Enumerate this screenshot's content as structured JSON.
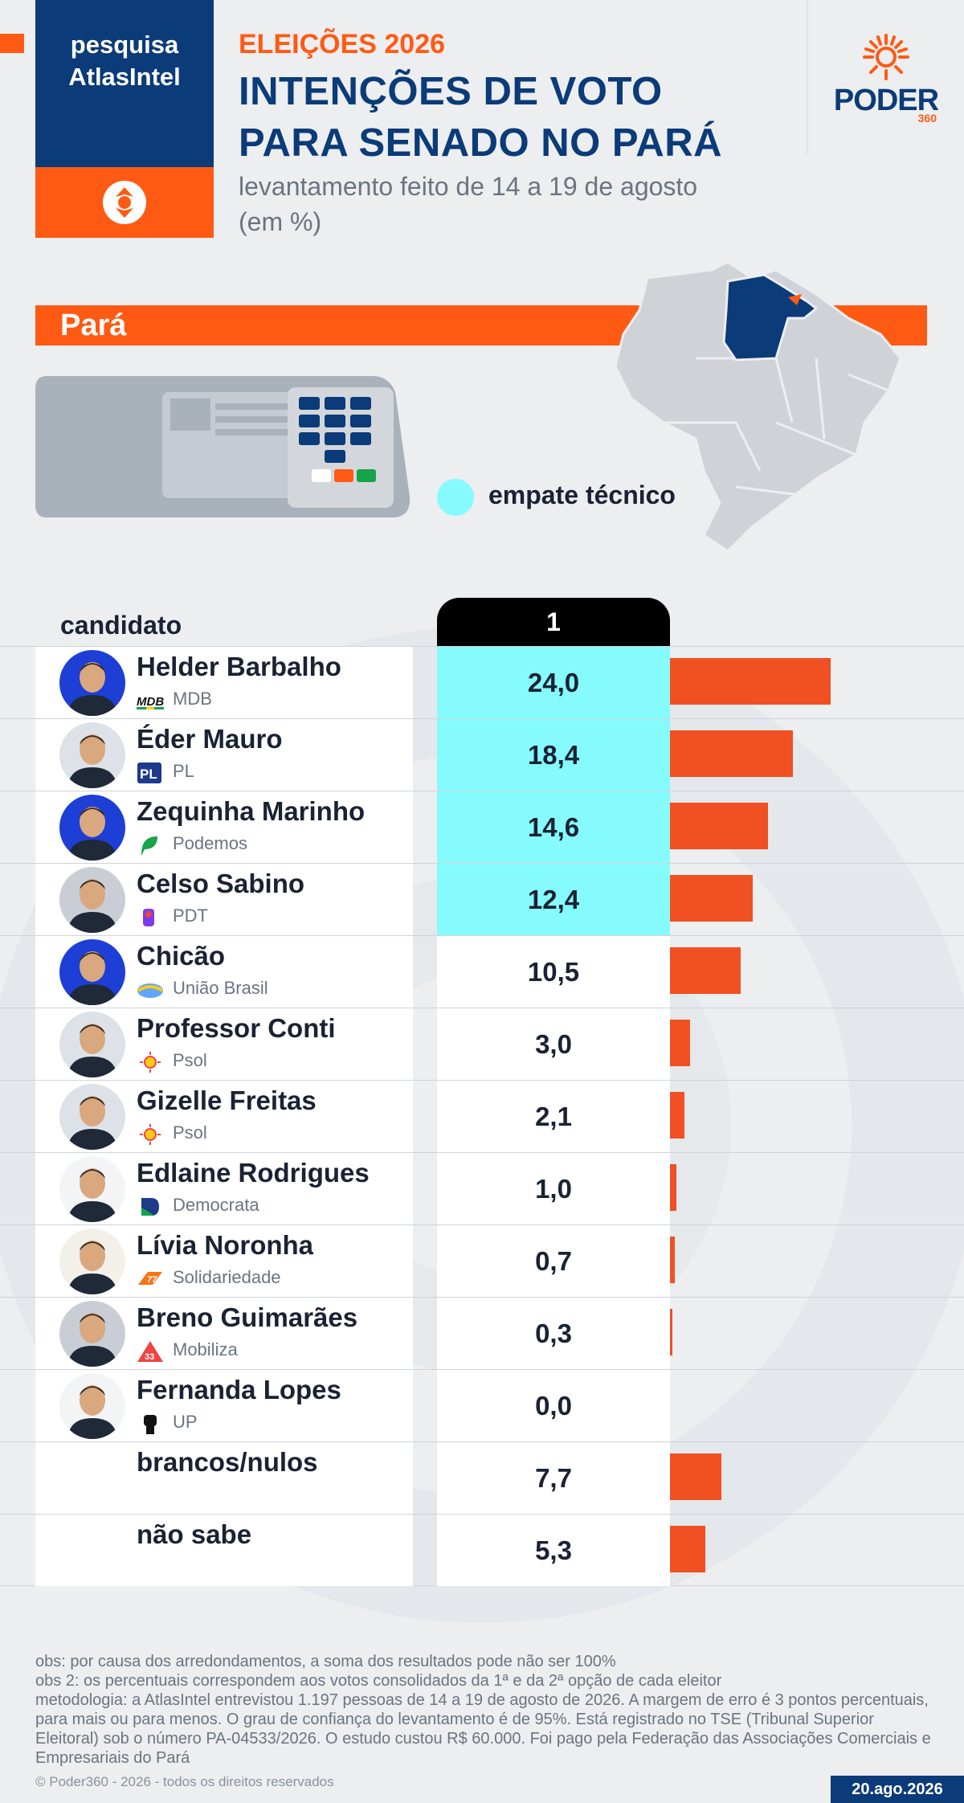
{
  "brand": {
    "survey_line1": "pesquisa",
    "survey_line2": "AtlasIntel",
    "logo_word": "PODER",
    "logo_number": "360"
  },
  "header": {
    "kicker": "ELEIÇÕES 2026",
    "title_line1": "INTENÇÕES DE VOTO",
    "title_line2": "PARA SENADO NO PARÁ",
    "subtitle_line1": "levantamento feito de 14 a 19 de agosto",
    "subtitle_line2": "(em %)"
  },
  "region": {
    "label": "Pará"
  },
  "legend": {
    "tie_label": "empate técnico",
    "tie_color": "#86fbfd"
  },
  "table": {
    "candidate_header": "candidato",
    "column_header": "1"
  },
  "colors": {
    "brand_blue": "#0b3b78",
    "brand_orange": "#ff5a13",
    "bar": "#f05022",
    "tie": "#86fbfd"
  },
  "chart_data": {
    "type": "bar",
    "orientation": "horizontal",
    "title": "INTENÇÕES DE VOTO PARA SENADO NO PARÁ",
    "subtitle": "levantamento feito de 14 a 19 de agosto (em %)",
    "xlim": [
      0,
      40
    ],
    "categories": [
      "Helder Barbalho",
      "Éder Mauro",
      "Zequinha Marinho",
      "Celso Sabino",
      "Chicão",
      "Professor Conti",
      "Gizelle Freitas",
      "Edlaine Rodrigues",
      "Lívia Noronha",
      "Breno Guimarães",
      "Fernanda Lopes",
      "brancos/nulos",
      "não sabe"
    ],
    "series": [
      {
        "name": "1",
        "values": [
          24.0,
          18.4,
          14.6,
          12.4,
          10.5,
          3.0,
          2.1,
          1.0,
          0.7,
          0.3,
          0.0,
          7.7,
          5.3
        ],
        "labels": [
          "24,0",
          "18,4",
          "14,6",
          "12,4",
          "10,5",
          "3,0",
          "2,1",
          "1,0",
          "0,7",
          "0,3",
          "0,0",
          "7,7",
          "5,3"
        ]
      }
    ],
    "rows": [
      {
        "name": "Helder Barbalho",
        "party": "MDB",
        "party_icon": "mdb-logo-icon",
        "avatar_color": "#1d3fd6",
        "tie": true
      },
      {
        "name": "Éder Mauro",
        "party": "PL",
        "party_icon": "pl-logo-icon",
        "avatar_color": "#dde2e8",
        "tie": true
      },
      {
        "name": "Zequinha Marinho",
        "party": "Podemos",
        "party_icon": "podemos-logo-icon",
        "avatar_color": "#1d3fd6",
        "tie": true
      },
      {
        "name": "Celso Sabino",
        "party": "PDT",
        "party_icon": "pdt-logo-icon",
        "avatar_color": "#c9ced6",
        "tie": true
      },
      {
        "name": "Chicão",
        "party": "União Brasil",
        "party_icon": "uniao-brasil-logo-icon",
        "avatar_color": "#1d3fd6",
        "tie": false
      },
      {
        "name": "Professor Conti",
        "party": "Psol",
        "party_icon": "psol-sun-icon",
        "avatar_color": "#dde2e8",
        "tie": false
      },
      {
        "name": "Gizelle Freitas",
        "party": "Psol",
        "party_icon": "psol-sun-icon",
        "avatar_color": "#dde2e8",
        "tie": false
      },
      {
        "name": "Edlaine Rodrigues",
        "party": "Democrata",
        "party_icon": "democrata-logo-icon",
        "avatar_color": "#f3f4f6",
        "tie": false
      },
      {
        "name": "Lívia Noronha",
        "party": "Solidariedade",
        "party_icon": "solidariedade-logo-icon",
        "avatar_color": "#f3f0ea",
        "tie": false
      },
      {
        "name": "Breno Guimarães",
        "party": "Mobiliza",
        "party_icon": "mobiliza-logo-icon",
        "avatar_color": "#c9ced6",
        "tie": false
      },
      {
        "name": "Fernanda Lopes",
        "party": "UP",
        "party_icon": "up-fist-icon",
        "avatar_color": "#f3f4f6",
        "tie": false
      },
      {
        "name": "brancos/nulos",
        "party": "",
        "party_icon": "",
        "avatar_color": "",
        "tie": false
      },
      {
        "name": "não sabe",
        "party": "",
        "party_icon": "",
        "avatar_color": "",
        "tie": false
      }
    ]
  },
  "footer": {
    "obs1": "obs: por causa dos arredondamentos, a soma dos resultados pode não ser 100%",
    "obs2": "obs 2: os percentuais correspondem aos votos consolidados da 1ª e da 2ª opção de cada eleitor",
    "methodology": "metodologia: a AtlasIntel entrevistou 1.197 pessoas de 14 a 19 de agosto de 2026. A margem de erro é 3 pontos percentuais, para mais ou para menos. O grau de confiança do levantamento é de 95%. Está registrado no TSE (Tribunal Superior Eleitoral) sob o número PA-04533/2026. O estudo custou R$ 60.000. Foi pago pela Federação das Associações Comerciais e Empresariais do Pará",
    "copyright": "© Poder360 - 2026 - todos os direitos reservados",
    "date": "20.ago.2026"
  }
}
